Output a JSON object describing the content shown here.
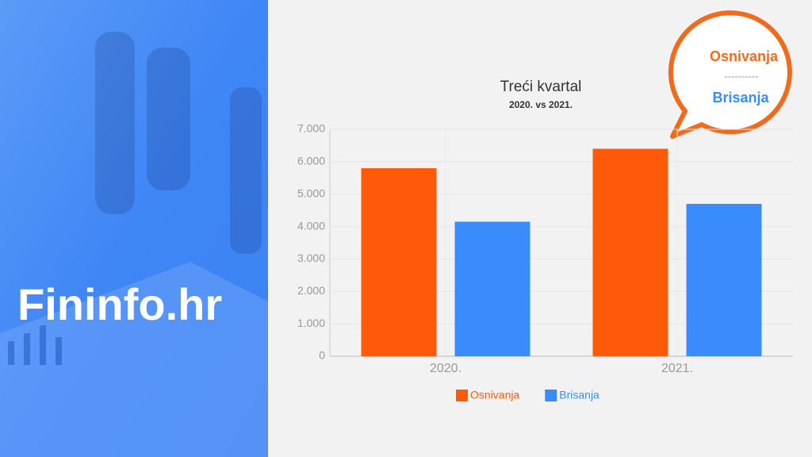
{
  "brand": "Fininfo.hr",
  "bubble": {
    "top": "Osnivanja",
    "separator": "----------",
    "bottom": "Brisanja"
  },
  "chart_data": {
    "type": "bar",
    "title": "Treći kvartal",
    "subtitle": "2020. vs 2021.",
    "categories": [
      "2020.",
      "2021."
    ],
    "series": [
      {
        "name": "Osnivanja",
        "color": "#ff5a09",
        "values": [
          5800,
          6400
        ]
      },
      {
        "name": "Brisanja",
        "color": "#3a8cfc",
        "values": [
          4150,
          4700
        ]
      }
    ],
    "ylim": [
      0,
      7000
    ],
    "yticks": [
      0,
      {
        "value": 1000,
        "label": "1.000"
      },
      {
        "value": 2000,
        "label": "2.000"
      },
      {
        "value": 3000,
        "label": "3.000"
      },
      {
        "value": 4000,
        "label": "4.000"
      },
      {
        "value": 5000,
        "label": "5.000"
      },
      {
        "value": 6000,
        "label": "6.000"
      },
      {
        "value": 7000,
        "label": "7.000"
      }
    ],
    "grid": true,
    "legend": "bottom"
  }
}
